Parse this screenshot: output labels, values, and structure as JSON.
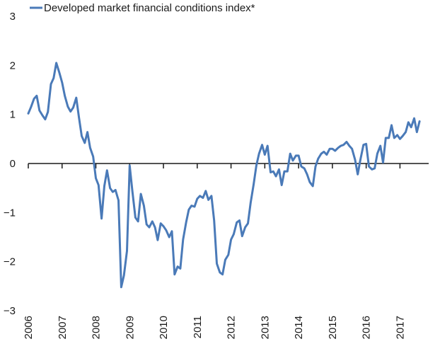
{
  "chart_data": {
    "type": "line",
    "title": "",
    "xlabel": "",
    "ylabel": "",
    "ylim": [
      -3,
      3
    ],
    "xlim": [
      2006,
      2017.85
    ],
    "y_ticks": [
      "3",
      "2",
      "1",
      "0",
      "-1",
      "-2",
      "-3"
    ],
    "x_ticks": [
      "2006",
      "2007",
      "2008",
      "2009",
      "2010",
      "2011",
      "2012",
      "2013",
      "2014",
      "2015",
      "2016",
      "2017"
    ],
    "grid": false,
    "legend_position": "top-left",
    "colors": {
      "series": "#4a7ab8",
      "axis": "#1a1a1a"
    },
    "series": [
      {
        "name": "Developed market financial conditions index*",
        "x": [
          2006.0,
          2006.08,
          2006.17,
          2006.25,
          2006.33,
          2006.42,
          2006.5,
          2006.58,
          2006.67,
          2006.75,
          2006.83,
          2006.92,
          2007.0,
          2007.08,
          2007.17,
          2007.25,
          2007.33,
          2007.42,
          2007.5,
          2007.58,
          2007.67,
          2007.75,
          2007.83,
          2007.92,
          2008.0,
          2008.08,
          2008.17,
          2008.25,
          2008.33,
          2008.42,
          2008.5,
          2008.58,
          2008.67,
          2008.75,
          2008.83,
          2008.92,
          2009.0,
          2009.08,
          2009.17,
          2009.25,
          2009.33,
          2009.42,
          2009.5,
          2009.58,
          2009.67,
          2009.75,
          2009.83,
          2009.92,
          2010.0,
          2010.08,
          2010.17,
          2010.25,
          2010.33,
          2010.42,
          2010.5,
          2010.58,
          2010.67,
          2010.75,
          2010.83,
          2010.92,
          2011.0,
          2011.08,
          2011.17,
          2011.25,
          2011.33,
          2011.42,
          2011.5,
          2011.58,
          2011.67,
          2011.75,
          2011.83,
          2011.92,
          2012.0,
          2012.08,
          2012.17,
          2012.25,
          2012.33,
          2012.42,
          2012.5,
          2012.58,
          2012.67,
          2012.75,
          2012.83,
          2012.92,
          2013.0,
          2013.08,
          2013.17,
          2013.25,
          2013.33,
          2013.42,
          2013.5,
          2013.58,
          2013.67,
          2013.75,
          2013.83,
          2013.92,
          2014.0,
          2014.08,
          2014.17,
          2014.25,
          2014.33,
          2014.42,
          2014.5,
          2014.58,
          2014.67,
          2014.75,
          2014.83,
          2014.92,
          2015.0,
          2015.08,
          2015.17,
          2015.25,
          2015.33,
          2015.42,
          2015.5,
          2015.58,
          2015.67,
          2015.75,
          2015.83,
          2015.92,
          2016.0,
          2016.08,
          2016.17,
          2016.25,
          2016.33,
          2016.42,
          2016.5,
          2016.58,
          2016.67,
          2016.75,
          2016.83,
          2016.92,
          2017.0,
          2017.08,
          2017.17,
          2017.25,
          2017.33,
          2017.42,
          2017.5,
          2017.58
        ],
        "y": [
          1.02,
          1.15,
          1.32,
          1.38,
          1.08,
          0.98,
          0.9,
          1.05,
          1.62,
          1.74,
          2.05,
          1.85,
          1.65,
          1.38,
          1.16,
          1.06,
          1.14,
          1.34,
          0.94,
          0.56,
          0.42,
          0.64,
          0.32,
          0.14,
          -0.3,
          -0.44,
          -1.12,
          -0.46,
          -0.14,
          -0.5,
          -0.58,
          -0.54,
          -0.75,
          -2.52,
          -2.28,
          -1.78,
          -0.04,
          -0.56,
          -1.1,
          -1.18,
          -0.62,
          -0.86,
          -1.24,
          -1.3,
          -1.18,
          -1.3,
          -1.56,
          -1.22,
          -1.28,
          -1.36,
          -1.5,
          -1.38,
          -2.26,
          -2.1,
          -2.14,
          -1.55,
          -1.2,
          -0.94,
          -0.86,
          -0.88,
          -0.72,
          -0.66,
          -0.7,
          -0.56,
          -0.74,
          -0.66,
          -1.16,
          -2.04,
          -2.22,
          -2.26,
          -1.96,
          -1.86,
          -1.55,
          -1.44,
          -1.2,
          -1.16,
          -1.48,
          -1.3,
          -1.22,
          -0.8,
          -0.42,
          -0.04,
          0.2,
          0.38,
          0.18,
          0.36,
          -0.18,
          -0.16,
          -0.26,
          -0.12,
          -0.44,
          -0.16,
          -0.16,
          0.2,
          0.06,
          0.16,
          0.16,
          -0.06,
          -0.1,
          -0.22,
          -0.38,
          -0.46,
          -0.06,
          0.1,
          0.2,
          0.24,
          0.18,
          0.3,
          0.3,
          0.26,
          0.32,
          0.36,
          0.38,
          0.44,
          0.36,
          0.3,
          0.08,
          -0.22,
          0.08,
          0.38,
          0.4,
          -0.06,
          -0.12,
          -0.1,
          0.2,
          0.36,
          0.02,
          0.52,
          0.52,
          0.78,
          0.52,
          0.58,
          0.5,
          0.56,
          0.64,
          0.84,
          0.74,
          0.92,
          0.64,
          0.86
        ]
      }
    ]
  }
}
